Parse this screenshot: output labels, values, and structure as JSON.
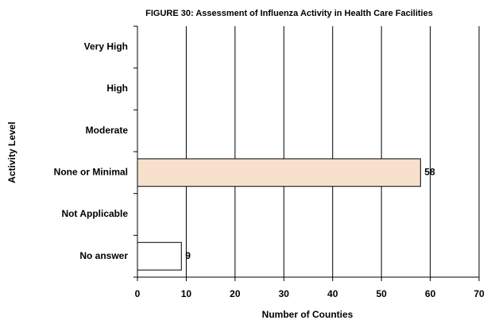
{
  "chart_data": {
    "type": "bar",
    "orientation": "horizontal",
    "title": "FIGURE 30: Assessment of Influenza Activity in Health Care Facilities",
    "x_label": "Number of Counties",
    "y_label": "Activity Level",
    "categories": [
      "Very High",
      "High",
      "Moderate",
      "None or Minimal",
      "Not Applicable",
      "No answer"
    ],
    "values": [
      0,
      0,
      0,
      58,
      0,
      9
    ],
    "colors": [
      "#ffffff",
      "#ffffff",
      "#ffffff",
      "#f7e1cc",
      "#ffffff",
      "#ffffff"
    ],
    "xlim": [
      0,
      70
    ],
    "xticks": [
      0,
      10,
      20,
      30,
      40,
      50,
      60,
      70
    ],
    "grid": true
  }
}
